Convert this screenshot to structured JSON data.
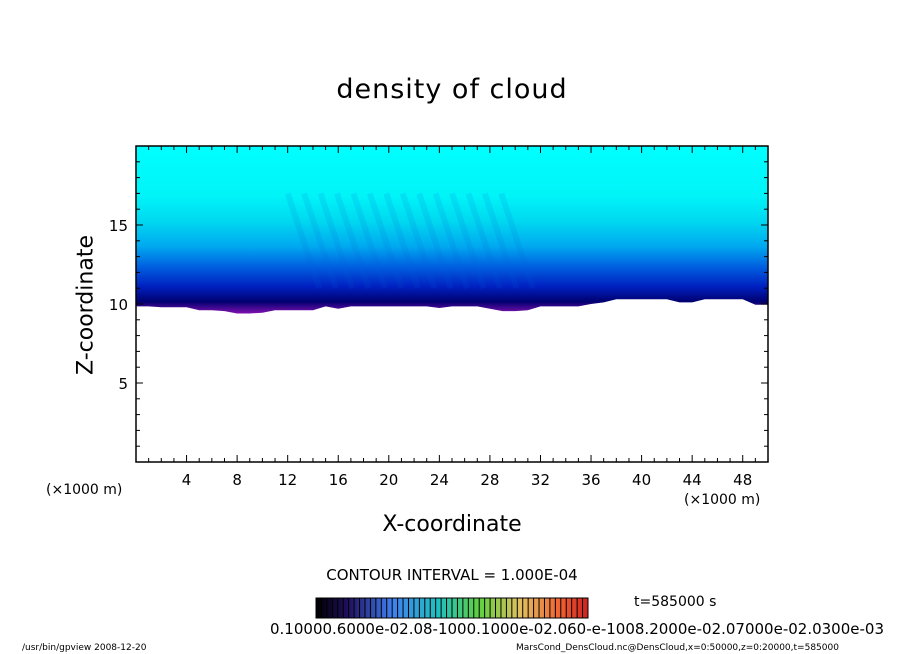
{
  "chart_data": {
    "type": "contour",
    "title": "density of cloud",
    "xlabel": "X-coordinate",
    "ylabel": "Z-coordinate",
    "x_unit": "(×1000 m)",
    "y_unit": "(×1000 m)",
    "xlim": [
      0,
      50
    ],
    "ylim": [
      0,
      20
    ],
    "x_ticks": [
      4,
      8,
      12,
      16,
      20,
      24,
      28,
      32,
      36,
      40,
      44,
      48
    ],
    "y_ticks": [
      5,
      10,
      15
    ],
    "cloud_base_x": [
      0,
      1,
      2,
      3,
      4,
      5,
      6,
      7,
      8,
      9,
      10,
      11,
      12,
      13,
      14,
      15,
      16,
      17,
      18,
      19,
      20,
      21,
      22,
      23,
      24,
      25,
      26,
      27,
      28,
      29,
      30,
      31,
      32,
      33,
      34,
      35,
      36,
      37,
      38,
      39,
      40,
      41,
      42,
      43,
      44,
      45,
      46,
      47,
      48,
      49,
      50
    ],
    "cloud_base_z": [
      9.85,
      9.85,
      9.8,
      9.8,
      9.8,
      9.6,
      9.6,
      9.55,
      9.4,
      9.4,
      9.45,
      9.6,
      9.6,
      9.6,
      9.6,
      9.85,
      9.7,
      9.85,
      9.85,
      9.85,
      9.85,
      9.85,
      9.85,
      9.85,
      9.75,
      9.85,
      9.85,
      9.85,
      9.7,
      9.55,
      9.55,
      9.6,
      9.85,
      9.85,
      9.85,
      9.85,
      10.0,
      10.1,
      10.3,
      10.3,
      10.3,
      10.3,
      10.3,
      10.1,
      10.1,
      10.3,
      10.3,
      10.3,
      10.3,
      9.95,
      9.95
    ],
    "contour_interval": "CONTOUR INTERVAL = 1.000E-04",
    "time_label": "t=585000 s",
    "colorbar_ticks": "0.10000.6000e-02.08-1000.1000e-02.060-e-1008.2000e-02.07000e-02.0300e-03",
    "colors": {
      "top": "#00ffff",
      "upper": "#00e0f0",
      "mid": "#0090f0",
      "deep": "#0030d0",
      "dark": "#000070",
      "base": "#8010b0"
    }
  },
  "footer": {
    "left": "/usr/bin/gpview  2008-12-20",
    "right": "MarsCond_DensCloud.nc@DensCloud,x=0:50000,z=0:20000,t=585000"
  }
}
